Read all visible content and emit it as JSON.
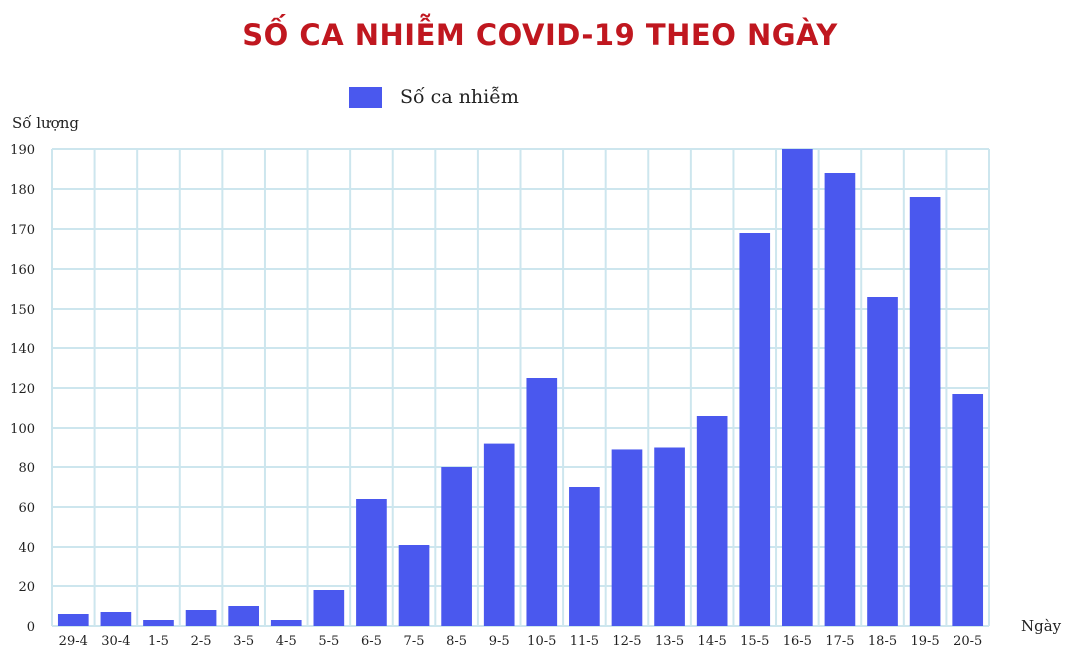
{
  "chart_data": {
    "type": "bar",
    "title": "SỐ CA NHIỄM COVID-19 THEO NGÀY",
    "xlabel": "Ngày",
    "ylabel": "Số lượng",
    "legend": {
      "entries": [
        "Số ca nhiễm"
      ],
      "position": "top-left"
    },
    "categories": [
      "29-4",
      "30-4",
      "1-5",
      "2-5",
      "3-5",
      "4-5",
      "5-5",
      "6-5",
      "7-5",
      "8-5",
      "9-5",
      "10-5",
      "11-5",
      "12-5",
      "13-5",
      "14-5",
      "15-5",
      "16-5",
      "17-5",
      "18-5",
      "19-5",
      "20-5"
    ],
    "series": [
      {
        "name": "Số ca nhiễm",
        "values": [
          6,
          7,
          3,
          8,
          10,
          3,
          18,
          64,
          41,
          80,
          92,
          125,
          70,
          89,
          90,
          106,
          169,
          190,
          184,
          153,
          178,
          117
        ]
      }
    ],
    "yticks": [
      0,
      20,
      40,
      60,
      80,
      100,
      120,
      140,
      150,
      160,
      170,
      180,
      190
    ],
    "ylim": [
      0,
      190
    ],
    "grid": true,
    "colors": {
      "bar": "#4a58ee",
      "grid": "#cde6ee",
      "title": "#c0171f"
    }
  }
}
